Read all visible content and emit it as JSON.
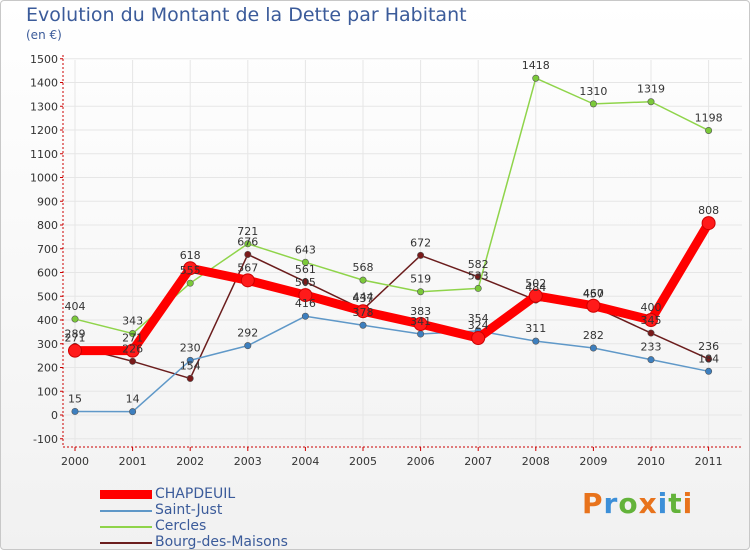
{
  "title": "Evolution du Montant de la Dette par Habitant",
  "subtitle": "(en €)",
  "logo": {
    "text": "Proxiti",
    "letters": [
      "P",
      "r",
      "o",
      "x",
      "i",
      "t",
      "i"
    ],
    "colors": [
      "#e8731c",
      "#3c8fd8",
      "#63b33a",
      "#e8731c",
      "#3c8fd8",
      "#63b33a",
      "#e8731c"
    ]
  },
  "chart_data": {
    "type": "line",
    "x": [
      "2000",
      "2001",
      "2002",
      "2003",
      "2004",
      "2005",
      "2006",
      "2007",
      "2008",
      "2009",
      "2010",
      "2011"
    ],
    "ylim": [
      -100,
      1500
    ],
    "yticks": [
      -100,
      0,
      100,
      200,
      300,
      400,
      500,
      600,
      700,
      800,
      900,
      1000,
      1100,
      1200,
      1300,
      1400,
      1500
    ],
    "grid": true,
    "legend_position": "bottom-left",
    "series": [
      {
        "name": "Bourg-des-Maisons",
        "color": "#6b1d1d",
        "dot": "#7a1a1a",
        "values": [
          289,
          226,
          154,
          676,
          561,
          444,
          672,
          582,
          484,
          457,
          345,
          236
        ],
        "labels": [
          "289",
          "226",
          "154",
          "676",
          "561",
          "444",
          "672",
          "582",
          "484",
          "457",
          "345",
          "236"
        ]
      },
      {
        "name": "Saint-Just",
        "color": "#5f98c8",
        "dot": "#3d7fbf",
        "values": [
          15,
          14,
          230,
          292,
          416,
          378,
          341,
          354,
          311,
          282,
          233,
          184
        ],
        "labels": [
          "15",
          "14",
          "230",
          "292",
          "416",
          "378",
          "341",
          "354",
          "311",
          "282",
          "233",
          "184"
        ]
      },
      {
        "name": "Cercles",
        "color": "#8fd44a",
        "dot": "#7bc93a",
        "values": [
          404,
          343,
          555,
          721,
          643,
          568,
          519,
          533,
          1418,
          1310,
          1319,
          1198
        ],
        "labels": [
          "404",
          "343",
          "555",
          "721",
          "643",
          "568",
          "519",
          "533",
          "1418",
          "1310",
          "1319",
          "1198"
        ]
      },
      {
        "name": "CHAPDEUIL",
        "color": "#ff0000",
        "dot": "#ff1a1a",
        "values": [
          271,
          271,
          618,
          567,
          505,
          437,
          383,
          324,
          502,
          460,
          400,
          808
        ],
        "labels": [
          "271",
          "271",
          "618",
          "567",
          "505",
          "437",
          "383",
          "324",
          "502",
          "460",
          "400",
          "808"
        ]
      }
    ],
    "legend_order": [
      "CHAPDEUIL",
      "Saint-Just",
      "Cercles",
      "Bourg-des-Maisons"
    ]
  }
}
